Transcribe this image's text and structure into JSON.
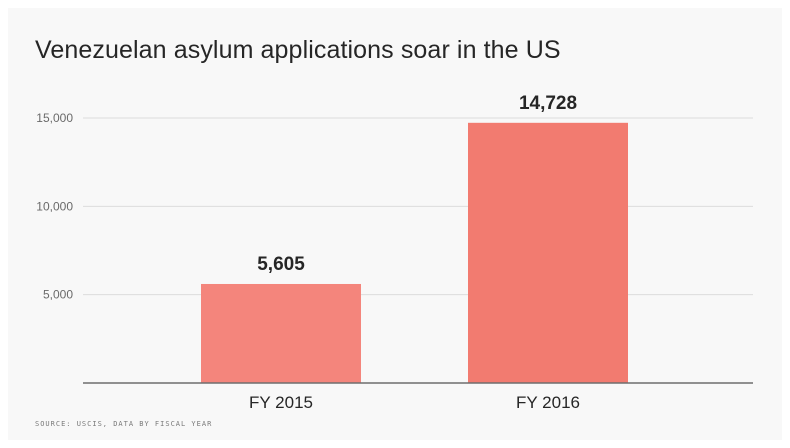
{
  "chart_data": {
    "type": "bar",
    "title": "Venezuelan asylum applications soar in the US",
    "categories": [
      "FY 2015",
      "FY 2016"
    ],
    "values": [
      5605,
      14728
    ],
    "value_labels": [
      "5,605",
      "14,728"
    ],
    "yticks": [
      5000,
      10000,
      15000
    ],
    "ytick_labels": [
      "5,000",
      "10,000",
      "15,000"
    ],
    "ylim": [
      0,
      15000
    ],
    "xlabel": "",
    "ylabel": "",
    "grid": true,
    "bar_colors": [
      "#f4857c",
      "#f27b70"
    ],
    "source": "SOURCE: USCIS, DATA BY FISCAL YEAR"
  }
}
